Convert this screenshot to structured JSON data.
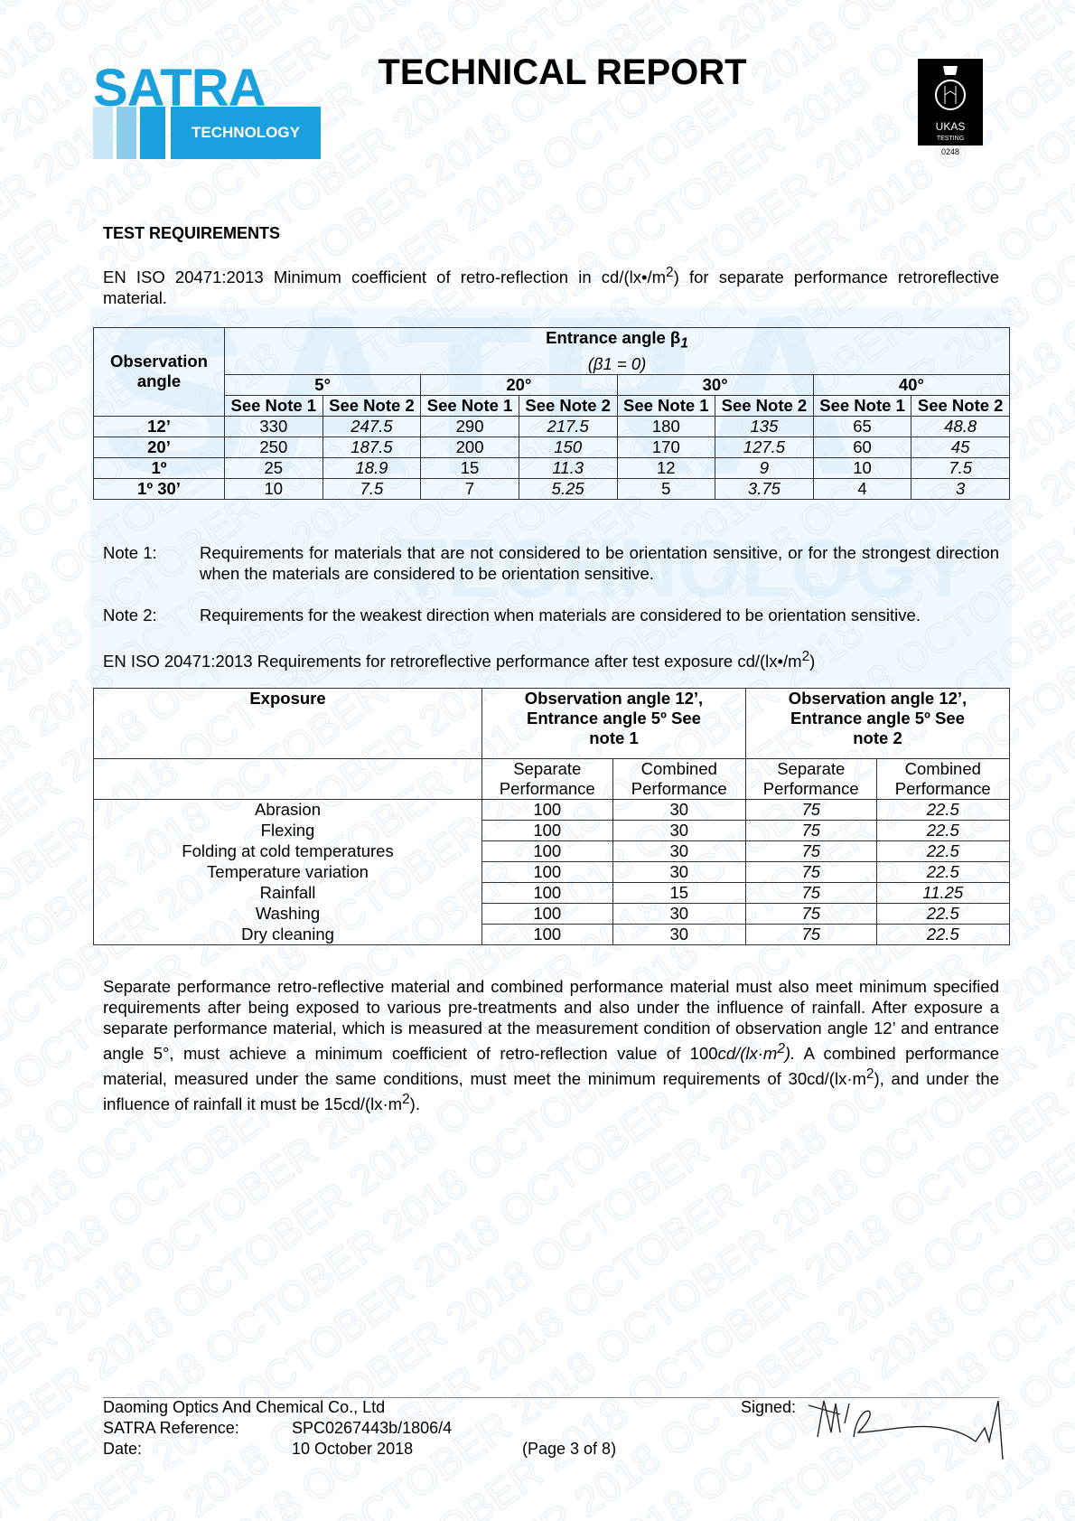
{
  "header": {
    "logo_text": "SATRA",
    "logo_sub": "TECHNOLOGY",
    "title": "TECHNICAL REPORT",
    "ukas_text": "UKAS",
    "ukas_sub": "TESTING",
    "ukas_number": "0248",
    "brand_color": "#1aa0dc"
  },
  "watermark": {
    "text": "2018 OCTOBER"
  },
  "section": {
    "heading": "TEST REQUIREMENTS",
    "intro_pre": "EN ISO 20471:2013 Minimum coefficient of retro-reflection in cd/(lx•/m",
    "intro_sup": "2",
    "intro_post": ") for separate performance retroreflective material."
  },
  "table1": {
    "obs_header": "Observation angle",
    "entrance_header": "Entrance angle β",
    "entrance_sub": "1",
    "entrance_cond": "(β1 = 0)",
    "angles": [
      "5°",
      "20°",
      "30°",
      "40°"
    ],
    "note_headers": [
      "See Note 1",
      "See Note 2"
    ],
    "rows": [
      {
        "obs": "12’",
        "values": [
          "330",
          "247.5",
          "290",
          "217.5",
          "180",
          "135",
          "65",
          "48.8"
        ]
      },
      {
        "obs": "20’",
        "values": [
          "250",
          "187.5",
          "200",
          "150",
          "170",
          "127.5",
          "60",
          "45"
        ]
      },
      {
        "obs": "1º",
        "values": [
          "25",
          "18.9",
          "15",
          "11.3",
          "12",
          "9",
          "10",
          "7.5"
        ]
      },
      {
        "obs": "1º 30’",
        "values": [
          "10",
          "7.5",
          "7",
          "5.25",
          "5",
          "3.75",
          "4",
          "3"
        ]
      }
    ]
  },
  "notes": [
    {
      "label": "Note 1:",
      "text": "Requirements for materials that are not considered to be orientation sensitive, or for the strongest direction when the materials are considered to be orientation sensitive."
    },
    {
      "label": "Note 2:",
      "text": "Requirements for the weakest direction when materials are considered to be orientation sensitive."
    }
  ],
  "exposure_intro_pre": "EN ISO 20471:2013 Requirements for retroreflective performance after test exposure cd/(lx•/m",
  "exposure_intro_sup": "2",
  "exposure_intro_post": ")",
  "table2": {
    "h_exposure": "Exposure",
    "h_group1": "Observation angle 12’, Entrance angle 5º See note 1",
    "h_group2": "Observation angle 12’, Entrance angle 5º See note 2",
    "sub": [
      "Separate Performance",
      "Combined Performance",
      "Separate Performance",
      "Combined Performance"
    ],
    "rows": [
      {
        "name": "Abrasion",
        "values": [
          "100",
          "30",
          "75",
          "22.5"
        ]
      },
      {
        "name": "Flexing",
        "values": [
          "100",
          "30",
          "75",
          "22.5"
        ]
      },
      {
        "name": "Folding at cold temperatures",
        "values": [
          "100",
          "30",
          "75",
          "22.5"
        ]
      },
      {
        "name": "Temperature variation",
        "values": [
          "100",
          "30",
          "75",
          "22.5"
        ]
      },
      {
        "name": "Rainfall",
        "values": [
          "100",
          "15",
          "75",
          "11.25"
        ]
      },
      {
        "name": "Washing",
        "values": [
          "100",
          "30",
          "75",
          "22.5"
        ]
      },
      {
        "name": "Dry cleaning",
        "values": [
          "100",
          "30",
          "75",
          "22.5"
        ]
      }
    ]
  },
  "paragraph": {
    "a": "Separate performance retro-reflective material and combined performance material must also meet minimum specified requirements after being exposed to various pre-treatments and also under the influence of rainfall. After exposure a separate performance material, which is measured at the measurement condition of observation angle 12’ and entrance angle 5°, must achieve a minimum coefficient of retro-reflection value of 100",
    "b": "cd/(lx·m",
    "c": "2",
    "d": ").",
    "e": " A combined performance material, measured under the same conditions, must meet the minimum requirements of 30cd/(lx·m",
    "f": "), and under the influence of rainfall it must be 15cd/(lx·m",
    "g": ")."
  },
  "footer": {
    "company": "Daoming Optics And Chemical Co., Ltd",
    "ref_label": "SATRA Reference:",
    "ref_value": "SPC0267443b/1806/4",
    "date_label": "Date:",
    "date_value": "10 October 2018",
    "page": "(Page 3 of 8)",
    "signed_label": "Signed:"
  }
}
